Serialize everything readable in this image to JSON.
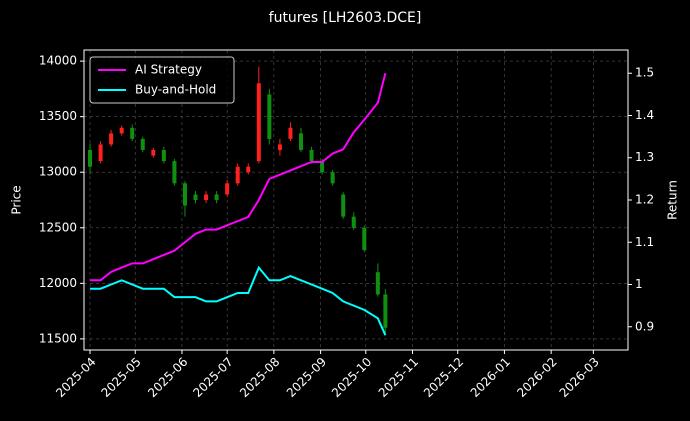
{
  "chart_data": {
    "type": "candlestick",
    "title": "futures [LH2603.DCE]",
    "ylabel": "Price",
    "y2label": "Return",
    "x": [
      "2025-04-01",
      "2025-04-08",
      "2025-04-15",
      "2025-04-22",
      "2025-04-29",
      "2025-05-06",
      "2025-05-13",
      "2025-05-20",
      "2025-05-27",
      "2025-06-03",
      "2025-06-10",
      "2025-06-17",
      "2025-06-24",
      "2025-07-01",
      "2025-07-08",
      "2025-07-15",
      "2025-07-22",
      "2025-07-29",
      "2025-08-05",
      "2025-08-12",
      "2025-08-19",
      "2025-08-26",
      "2025-09-02",
      "2025-09-09",
      "2025-09-16",
      "2025-09-23",
      "2025-09-30",
      "2025-10-09",
      "2025-10-14"
    ],
    "open": [
      13200,
      13100,
      13250,
      13350,
      13400,
      13300,
      13150,
      13200,
      13100,
      12900,
      12800,
      12750,
      12800,
      12800,
      12900,
      13000,
      13100,
      13700,
      13200,
      13300,
      13350,
      13200,
      13100,
      13000,
      12800,
      12600,
      12500,
      12100,
      11900
    ],
    "high": [
      13260,
      13280,
      13380,
      13420,
      13430,
      13320,
      13220,
      13230,
      13120,
      12920,
      12830,
      12830,
      12830,
      12930,
      13080,
      13080,
      13950,
      13750,
      13300,
      13450,
      13400,
      13230,
      13120,
      13020,
      12820,
      12640,
      12520,
      12180,
      11950
    ],
    "low": [
      12980,
      13080,
      13230,
      13330,
      13280,
      13180,
      13130,
      13080,
      12880,
      12600,
      12720,
      12720,
      12720,
      12780,
      12880,
      12980,
      13080,
      13250,
      13150,
      13280,
      13180,
      13080,
      12980,
      12880,
      12580,
      12480,
      12280,
      11880,
      11550
    ],
    "close": [
      13050,
      13250,
      13350,
      13400,
      13300,
      13200,
      13200,
      13100,
      12900,
      12700,
      12750,
      12800,
      12750,
      12900,
      13050,
      13050,
      13800,
      13300,
      13250,
      13400,
      13200,
      13100,
      13000,
      12900,
      12600,
      12500,
      12300,
      11900,
      11600
    ],
    "up_color": "#ff2020",
    "down_color": "#109010",
    "series": [
      {
        "name": "AI Strategy",
        "color": "#ff00ff",
        "axis": "y2",
        "values": [
          1.01,
          1.01,
          1.03,
          1.04,
          1.05,
          1.05,
          1.06,
          1.07,
          1.08,
          1.1,
          1.12,
          1.13,
          1.13,
          1.14,
          1.15,
          1.16,
          1.2,
          1.25,
          1.26,
          1.27,
          1.28,
          1.29,
          1.29,
          1.31,
          1.32,
          1.36,
          1.39,
          1.43,
          1.5
        ]
      },
      {
        "name": "Buy-and-Hold",
        "color": "#00ffff",
        "axis": "y2",
        "values": [
          0.99,
          0.99,
          1.0,
          1.01,
          1.0,
          0.99,
          0.99,
          0.99,
          0.97,
          0.97,
          0.97,
          0.96,
          0.96,
          0.97,
          0.98,
          0.98,
          1.04,
          1.01,
          1.01,
          1.02,
          1.01,
          1.0,
          0.99,
          0.98,
          0.96,
          0.95,
          0.94,
          0.92,
          0.88
        ]
      }
    ],
    "xlim": [
      "2025-03-28",
      "2026-03-24"
    ],
    "xticks": [
      "2025-04",
      "2025-05",
      "2025-06",
      "2025-07",
      "2025-08",
      "2025-09",
      "2025-10",
      "2025-11",
      "2025-12",
      "2026-01",
      "2026-02",
      "2026-03"
    ],
    "ylim": [
      11400,
      14100
    ],
    "yticks": [
      11500,
      12000,
      12500,
      13000,
      13500,
      14000
    ],
    "y2lim": [
      0.845,
      1.555
    ],
    "y2ticks": [
      0.9,
      1.0,
      1.1,
      1.2,
      1.3,
      1.4,
      1.5
    ],
    "grid": true,
    "legend": "upper left"
  }
}
